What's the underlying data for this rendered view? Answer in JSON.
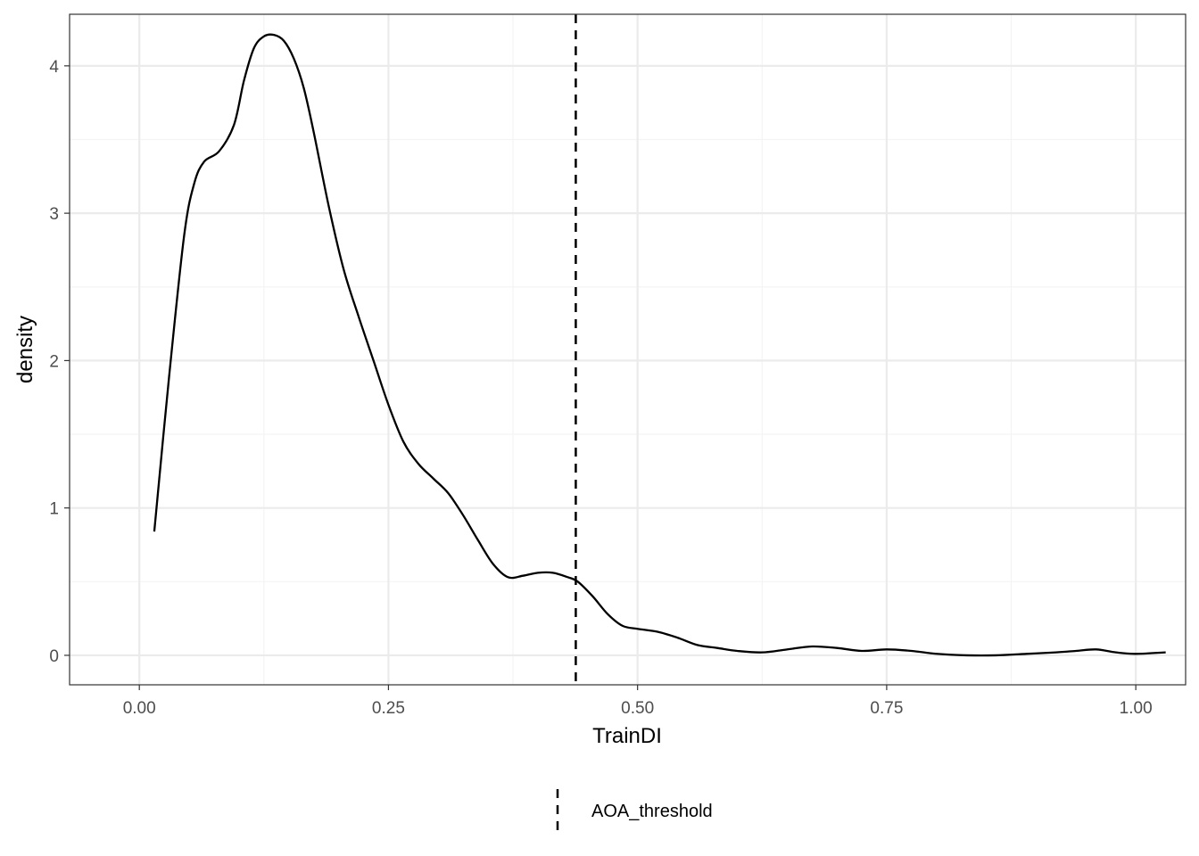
{
  "chart_data": {
    "type": "line",
    "title": "",
    "xlabel": "TrainDI",
    "ylabel": "density",
    "xlim": [
      -0.07,
      1.05
    ],
    "ylim": [
      -0.2,
      4.35
    ],
    "x_ticks": [
      0.0,
      0.25,
      0.5,
      0.75,
      1.0
    ],
    "x_tick_labels": [
      "0.00",
      "0.25",
      "0.50",
      "0.75",
      "1.00"
    ],
    "y_ticks": [
      0,
      1,
      2,
      3,
      4
    ],
    "y_tick_labels": [
      "0",
      "1",
      "2",
      "3",
      "4"
    ],
    "grid": true,
    "series": [
      {
        "x": [
          0.015,
          0.03,
          0.045,
          0.055,
          0.065,
          0.08,
          0.095,
          0.105,
          0.115,
          0.125,
          0.135,
          0.145,
          0.155,
          0.165,
          0.175,
          0.19,
          0.205,
          0.22,
          0.235,
          0.25,
          0.265,
          0.28,
          0.295,
          0.31,
          0.325,
          0.34,
          0.355,
          0.37,
          0.385,
          0.4,
          0.415,
          0.43,
          0.44,
          0.455,
          0.47,
          0.485,
          0.5,
          0.52,
          0.54,
          0.56,
          0.58,
          0.6,
          0.625,
          0.65,
          0.675,
          0.7,
          0.725,
          0.75,
          0.775,
          0.8,
          0.83,
          0.86,
          0.89,
          0.92,
          0.94,
          0.96,
          0.98,
          1.0,
          1.03
        ],
        "y": [
          0.84,
          1.9,
          2.85,
          3.2,
          3.35,
          3.42,
          3.6,
          3.9,
          4.12,
          4.2,
          4.21,
          4.17,
          4.05,
          3.85,
          3.55,
          3.05,
          2.62,
          2.3,
          2.0,
          1.7,
          1.45,
          1.3,
          1.2,
          1.1,
          0.95,
          0.78,
          0.62,
          0.53,
          0.54,
          0.56,
          0.56,
          0.53,
          0.5,
          0.4,
          0.28,
          0.2,
          0.18,
          0.16,
          0.12,
          0.07,
          0.05,
          0.03,
          0.02,
          0.04,
          0.06,
          0.05,
          0.03,
          0.04,
          0.03,
          0.01,
          0.0,
          0.0,
          0.01,
          0.02,
          0.03,
          0.04,
          0.02,
          0.01,
          0.02
        ]
      }
    ],
    "vlines": [
      {
        "x": 0.438,
        "style": "dashed",
        "label": "AOA_threshold"
      }
    ],
    "legend": {
      "position": "bottom",
      "entries": [
        "AOA_threshold"
      ]
    },
    "colors": {
      "line": "#000000",
      "panel_border": "#333333",
      "grid_major": "#ebebeb",
      "grid_minor": "#f4f4f4",
      "tick_text": "#4d4d4d"
    }
  }
}
